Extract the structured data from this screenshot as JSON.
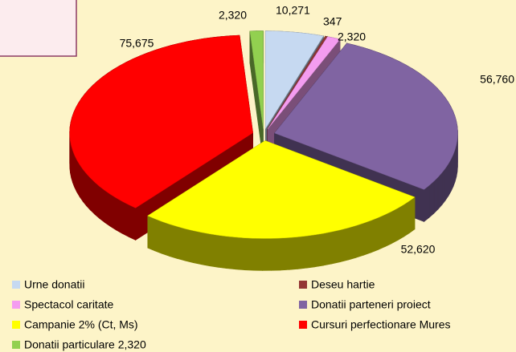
{
  "chart_data": {
    "type": "pie",
    "view": "3d-exploded",
    "categories": [
      "Urne donatii",
      "Deseu hartie",
      "Spectacol caritate",
      "Donatii parteneri proiect",
      "Campanie 2% (Ct, Ms)",
      "Cursuri perfectionare Mures",
      "Donatii particulare 2,320"
    ],
    "values": [
      10271,
      347,
      2320,
      56760,
      52620,
      75675,
      2320
    ],
    "value_labels": [
      "10,271",
      "347",
      "2,320",
      "56,760",
      "52,620",
      "75,675",
      "2,320"
    ],
    "colors": [
      "#c6d9f1",
      "#943634",
      "#f49cf0",
      "#8064a2",
      "#ffff00",
      "#ff0000",
      "#92d050"
    ],
    "legend": "bottom"
  }
}
